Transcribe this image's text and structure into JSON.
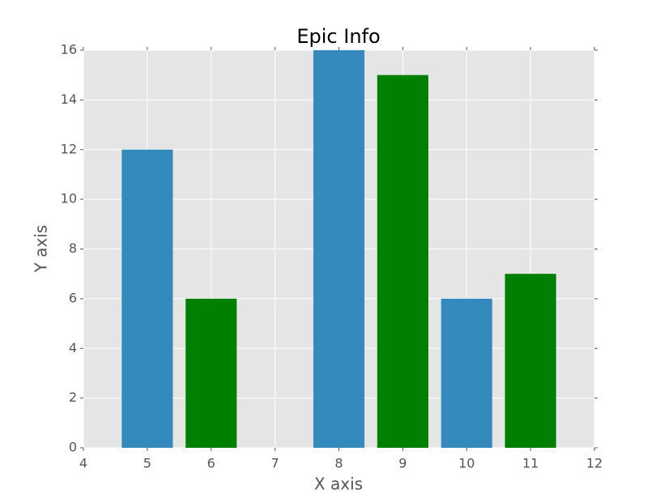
{
  "chart_data": {
    "type": "bar",
    "title": "Epic Info",
    "x_label": "X axis",
    "y_label": "Y axis",
    "series": [
      {
        "color": "#348abd",
        "x": [
          5,
          8,
          10
        ],
        "values": [
          12,
          16,
          6
        ]
      },
      {
        "color": "#008000",
        "x": [
          6,
          9,
          11
        ],
        "values": [
          6,
          15,
          7
        ]
      }
    ],
    "bar_width": 0.8,
    "xlim": [
      4,
      12
    ],
    "xticks": [
      4,
      5,
      6,
      7,
      8,
      9,
      10,
      11,
      12
    ],
    "ylim": [
      0,
      16
    ],
    "yticks": [
      0,
      2,
      4,
      6,
      8,
      10,
      12,
      14,
      16
    ],
    "grid": true
  }
}
